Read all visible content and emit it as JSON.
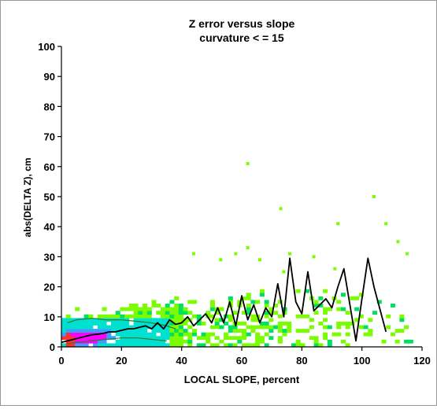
{
  "chart_data": {
    "type": "heatmap",
    "title": "Z error versus slope",
    "subtitle": "curvature < = 15",
    "xlabel": "LOCAL SLOPE, percent",
    "ylabel": "abs(DELTA Z), cm",
    "xlim": [
      0,
      120
    ],
    "ylim": [
      0,
      100
    ],
    "x_ticks": [
      "0",
      "20",
      "40",
      "60",
      "80",
      "100",
      "120"
    ],
    "y_ticks": [
      "0",
      "10",
      "20",
      "30",
      "40",
      "50",
      "60",
      "70",
      "80",
      "90",
      "100"
    ],
    "grid": false,
    "density_colors": [
      "#7cfc00",
      "#00e060",
      "#00e0d0",
      "#3aa0ff",
      "#ff00ff",
      "#ff3030"
    ],
    "mean_line": {
      "color": "#000000",
      "x": [
        0,
        2,
        4,
        6,
        8,
        10,
        12,
        14,
        16,
        18,
        20,
        22,
        24,
        26,
        28,
        30,
        32,
        34,
        36,
        38,
        40,
        42,
        44,
        46,
        48,
        50,
        52,
        54,
        56,
        58,
        60,
        62,
        64,
        66,
        68,
        70,
        72,
        74,
        76,
        78,
        80,
        82,
        84,
        86,
        88,
        90,
        92,
        94,
        96,
        98,
        100,
        102,
        104,
        108,
        113
      ],
      "y": [
        1.5,
        2,
        2.5,
        3,
        3.5,
        4,
        4.2,
        4.5,
        5,
        5,
        5.5,
        6,
        6,
        6.5,
        7,
        6,
        8,
        6,
        9,
        7.5,
        8,
        10,
        7,
        9,
        11,
        8,
        13,
        8,
        15,
        7,
        17,
        9,
        14,
        8,
        13,
        10,
        21,
        10,
        29.5,
        15,
        11,
        25,
        12,
        14,
        16,
        13,
        20,
        26,
        14,
        2,
        16,
        29.5,
        20,
        5
      ]
    },
    "contour_lines": [
      {
        "color": "#2a7a2a",
        "points_x": [
          2,
          5,
          10,
          15,
          20,
          25,
          30,
          35,
          38
        ],
        "points_y": [
          8,
          9,
          9.5,
          9,
          9,
          8.5,
          8,
          7,
          6
        ]
      },
      {
        "color": "#2a7a2a",
        "points_x": [
          2,
          5,
          10,
          15,
          20,
          25,
          30,
          35
        ],
        "points_y": [
          1,
          1.5,
          2,
          2.5,
          3,
          3,
          2.5,
          2
        ]
      }
    ],
    "scatter_outliers": [
      {
        "x": 62,
        "y": 61
      },
      {
        "x": 73,
        "y": 46
      },
      {
        "x": 104,
        "y": 50
      },
      {
        "x": 92,
        "y": 41
      },
      {
        "x": 108,
        "y": 41
      },
      {
        "x": 112,
        "y": 35
      },
      {
        "x": 115,
        "y": 31
      },
      {
        "x": 62,
        "y": 33
      },
      {
        "x": 44,
        "y": 31
      },
      {
        "x": 58,
        "y": 31
      },
      {
        "x": 76,
        "y": 31
      },
      {
        "x": 84,
        "y": 30
      },
      {
        "x": 66,
        "y": 29
      },
      {
        "x": 53,
        "y": 29
      },
      {
        "x": 74,
        "y": 25
      },
      {
        "x": 91,
        "y": 26
      }
    ]
  }
}
